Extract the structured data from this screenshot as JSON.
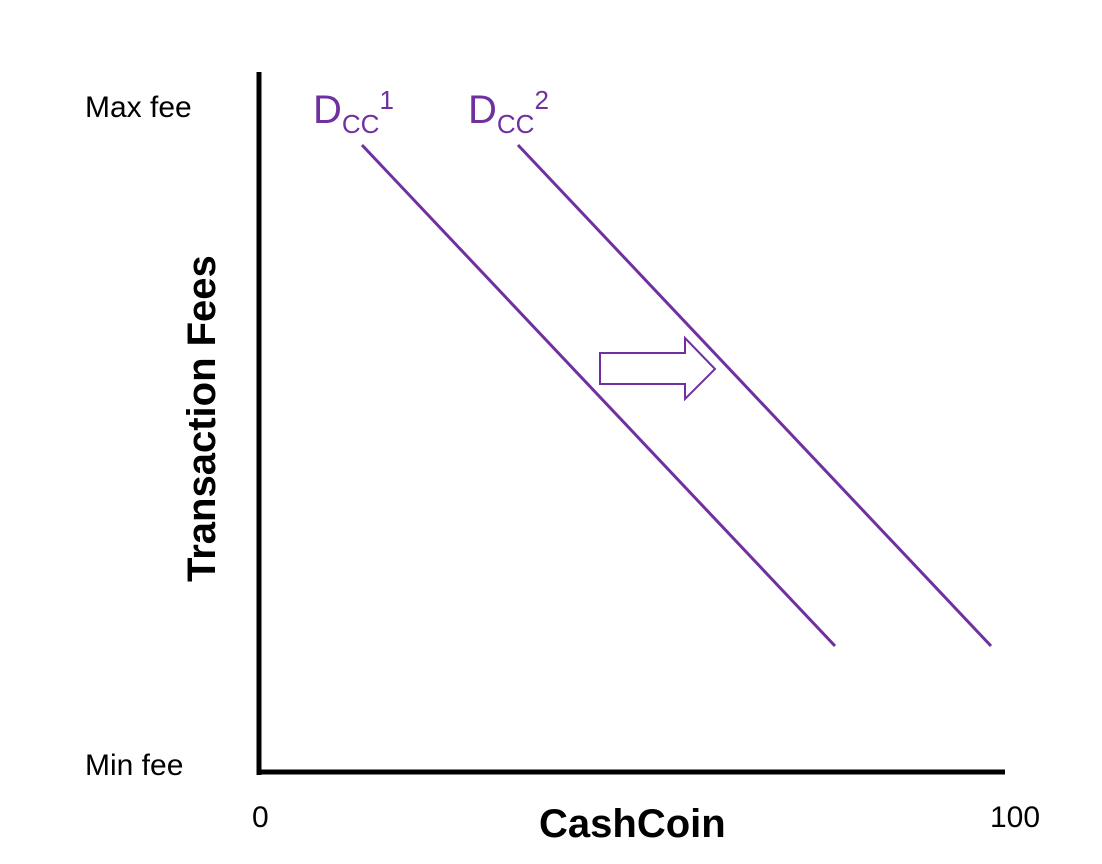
{
  "diagram": {
    "y_axis": {
      "title": "Transaction Fees",
      "top_label": "Max fee",
      "bottom_label": "Min fee"
    },
    "x_axis": {
      "title": "CashCoin",
      "left_label": "0",
      "right_label": "100"
    },
    "curves": [
      {
        "main": "D",
        "sub": "CC",
        "sup": "1"
      },
      {
        "main": "D",
        "sub": "CC",
        "sup": "2"
      }
    ],
    "shift_arrow": {
      "direction": "right"
    },
    "colors": {
      "curve": "#7030a0",
      "axis": "#000000"
    }
  }
}
